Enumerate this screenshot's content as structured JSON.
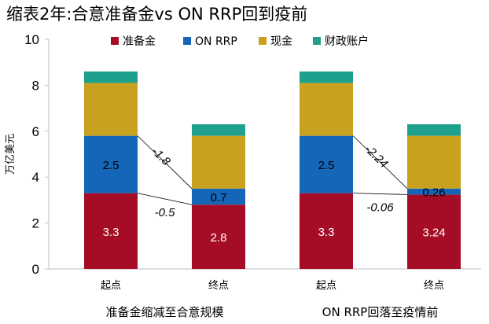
{
  "chart_data": {
    "type": "bar",
    "title": "缩表2年:合意准备金vs ON RRP回到疫前",
    "ylabel": "万亿美元",
    "ylim": [
      0,
      10
    ],
    "yticks": [
      "0",
      "2",
      "4",
      "6",
      "8",
      "10"
    ],
    "categories": [
      "起点",
      "终点",
      "起点",
      "终点"
    ],
    "groups": [
      "准备金缩减至合意规模",
      "ON RRP回落至疫情前"
    ],
    "series": [
      {
        "name": "准备金",
        "color": "#a50d26",
        "values": [
          3.3,
          2.8,
          3.3,
          3.24
        ],
        "labels": [
          "3.3",
          "2.8",
          "3.3",
          "3.24"
        ]
      },
      {
        "name": "ON RRP",
        "color": "#1565b8",
        "values": [
          2.5,
          0.7,
          2.5,
          0.26
        ],
        "labels": [
          "2.5",
          "0.7",
          "2.5",
          "0.26"
        ]
      },
      {
        "name": "现金",
        "color": "#c8a21e",
        "values": [
          2.3,
          2.3,
          2.3,
          2.3
        ],
        "labels": []
      },
      {
        "name": "财政账户",
        "color": "#1fa08c",
        "values": [
          0.5,
          0.5,
          0.5,
          0.5
        ],
        "labels": []
      }
    ],
    "annotations": [
      {
        "text": "-1.8",
        "from_bar": 0,
        "to_bar": 1,
        "level": "top_of_onrrp"
      },
      {
        "text": "-0.5",
        "from_bar": 0,
        "to_bar": 1,
        "level": "top_of_reserves"
      },
      {
        "text": "-2.24",
        "from_bar": 2,
        "to_bar": 3,
        "level": "top_of_onrrp"
      },
      {
        "text": "-0.06",
        "from_bar": 2,
        "to_bar": 3,
        "level": "top_of_reserves"
      }
    ],
    "legend_position": "top",
    "grid": false
  }
}
